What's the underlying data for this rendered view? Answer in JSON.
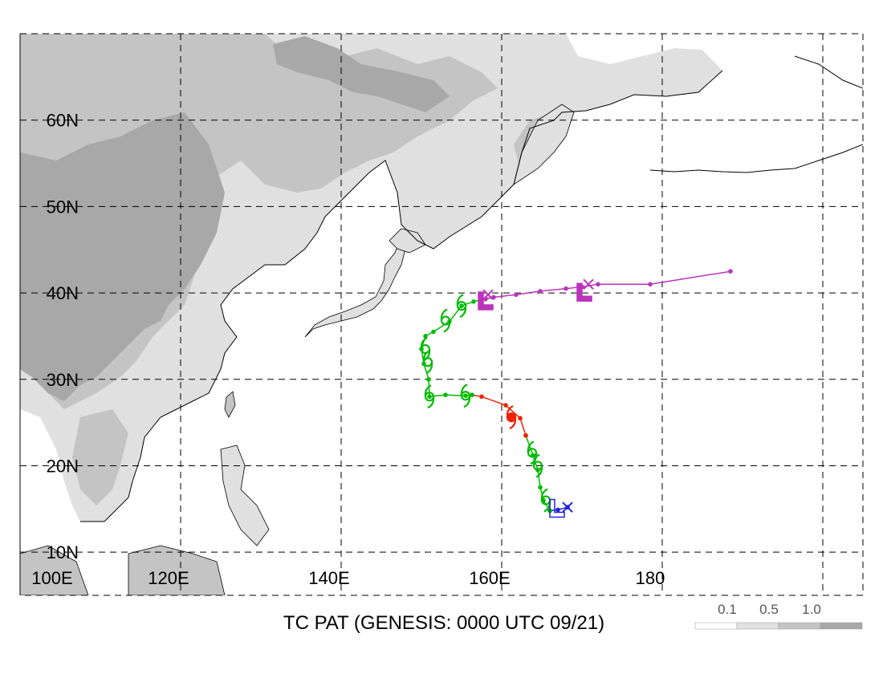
{
  "title": "TC PAT (GENESIS: 0000 UTC 09/21)",
  "map": {
    "lon_range": [
      100,
      205
    ],
    "lat_range": [
      5,
      70
    ],
    "grid_lons": [
      100,
      120,
      140,
      160,
      180,
      200
    ],
    "grid_lats": [
      10,
      20,
      30,
      40,
      50,
      60,
      70
    ],
    "lon_labels": [
      {
        "lon": 100,
        "text": "100E"
      },
      {
        "lon": 120,
        "text": "120E"
      },
      {
        "lon": 140,
        "text": "140E"
      },
      {
        "lon": 160,
        "text": "160E"
      },
      {
        "lon": 180,
        "text": "180"
      }
    ],
    "lat_labels": [
      {
        "lat": 10,
        "text": "10N"
      },
      {
        "lat": 20,
        "text": "20N"
      },
      {
        "lat": 30,
        "text": "30N"
      },
      {
        "lat": 40,
        "text": "40N"
      },
      {
        "lat": 50,
        "text": "50N"
      },
      {
        "lat": 60,
        "text": "60N"
      }
    ]
  },
  "legend": {
    "labels": [
      "0.1",
      "0.5",
      "1.0"
    ],
    "colors": [
      "#ffffff",
      "#e0e0e0",
      "#c4c4c4",
      "#a8a8a8"
    ]
  },
  "colors": {
    "land_light": "#e0e0e0",
    "land_mid": "#c4c4c4",
    "land_dark": "#a8a8a8",
    "track_depression": "#2222dd",
    "track_storm": "#00bb00",
    "track_typhoon": "#ee2200",
    "track_extratropical": "#bb33bb"
  },
  "tracks": [
    {
      "stage": "depression",
      "color": "#2222dd",
      "points": [
        [
          168.2,
          15.2
        ],
        [
          167.0,
          14.9
        ],
        [
          166.0,
          14.8
        ]
      ]
    },
    {
      "stage": "storm",
      "color": "#00bb00",
      "points": [
        [
          166.0,
          14.8
        ],
        [
          165.2,
          16.0
        ],
        [
          164.8,
          17.5
        ],
        [
          164.5,
          19.5
        ],
        [
          163.9,
          21.2
        ],
        [
          163.0,
          23.5
        ]
      ]
    },
    {
      "stage": "typhoon",
      "color": "#ee2200",
      "points": [
        [
          163.0,
          23.5
        ],
        [
          162.3,
          25.5
        ],
        [
          160.5,
          27.0
        ],
        [
          157.5,
          28.0
        ],
        [
          156.3,
          28.2
        ]
      ]
    },
    {
      "stage": "storm",
      "color": "#00bb00",
      "points": [
        [
          156.3,
          28.2
        ],
        [
          155.5,
          28.1
        ],
        [
          153.0,
          28.2
        ],
        [
          151.0,
          28.0
        ],
        [
          150.9,
          30.0
        ],
        [
          150.3,
          31.8
        ],
        [
          150.0,
          33.5
        ],
        [
          150.5,
          35.0
        ],
        [
          151.5,
          35.5
        ],
        [
          153.5,
          36.7
        ],
        [
          155.0,
          38.5
        ],
        [
          156.5,
          39.0
        ],
        [
          158.0,
          39.3
        ]
      ]
    },
    {
      "stage": "extratropical",
      "color": "#bb33bb",
      "points": [
        [
          158.0,
          39.3
        ],
        [
          159.0,
          39.5
        ],
        [
          161.8,
          39.8
        ],
        [
          164.8,
          40.2
        ],
        [
          168.0,
          40.5
        ],
        [
          170.0,
          40.7
        ],
        [
          172.0,
          41.0
        ],
        [
          178.5,
          41.0
        ],
        [
          188.5,
          42.5
        ]
      ]
    }
  ],
  "markers": [
    {
      "symbol": "L",
      "lon": 166.8,
      "lat": 14.8,
      "color": "#2222dd",
      "filled": false
    },
    {
      "symbol": "x",
      "lon": 168.2,
      "lat": 15.2,
      "color": "#2222dd"
    },
    {
      "symbol": "L",
      "lon": 157.9,
      "lat": 38.8,
      "color": "#bb33bb",
      "filled": true
    },
    {
      "symbol": "x",
      "lon": 158.3,
      "lat": 39.8,
      "color": "#bb33bb"
    },
    {
      "symbol": "L",
      "lon": 170.2,
      "lat": 39.8,
      "color": "#bb33bb",
      "filled": true
    },
    {
      "symbol": "x",
      "lon": 170.8,
      "lat": 41.0,
      "color": "#bb33bb"
    }
  ],
  "storm_symbols": [
    {
      "lon": 165.5,
      "lat": 16.0,
      "color": "#00bb00"
    },
    {
      "lon": 164.5,
      "lat": 20.0,
      "color": "#00bb00"
    },
    {
      "lon": 163.8,
      "lat": 21.5,
      "color": "#00bb00"
    },
    {
      "lon": 151.0,
      "lat": 28.0,
      "color": "#00bb00"
    },
    {
      "lon": 155.5,
      "lat": 28.1,
      "color": "#00bb00"
    },
    {
      "lon": 150.5,
      "lat": 33.5,
      "color": "#00bb00"
    },
    {
      "lon": 150.8,
      "lat": 32.0,
      "color": "#00bb00"
    },
    {
      "lon": 153.0,
      "lat": 36.8,
      "color": "#00bb00"
    },
    {
      "lon": 155.0,
      "lat": 38.5,
      "color": "#00bb00"
    }
  ],
  "typhoon_symbols": [
    {
      "lon": 161.2,
      "lat": 25.6,
      "color": "#ee2200"
    }
  ]
}
